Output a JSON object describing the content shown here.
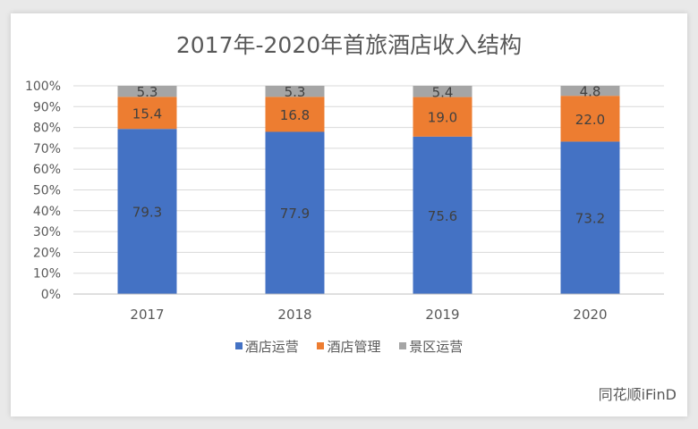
{
  "chart_data": {
    "type": "bar",
    "stacked": true,
    "title": "2017年-2020年首旅酒店收入结构",
    "categories": [
      "2017",
      "2018",
      "2019",
      "2020"
    ],
    "series": [
      {
        "name": "酒店运营",
        "color": "#4472c4",
        "values": [
          79.3,
          77.9,
          75.6,
          73.2
        ]
      },
      {
        "name": "酒店管理",
        "color": "#ed7d31",
        "values": [
          15.4,
          16.8,
          19.0,
          22.0
        ]
      },
      {
        "name": "景区运营",
        "color": "#a5a5a5",
        "values": [
          5.3,
          5.3,
          5.4,
          4.8
        ]
      }
    ],
    "yticks": [
      "0%",
      "10%",
      "20%",
      "30%",
      "40%",
      "50%",
      "60%",
      "70%",
      "80%",
      "90%",
      "100%"
    ],
    "ylim": [
      0,
      100
    ],
    "grid": true,
    "legend": "bottom"
  },
  "watermark": "同花顺iFinD"
}
